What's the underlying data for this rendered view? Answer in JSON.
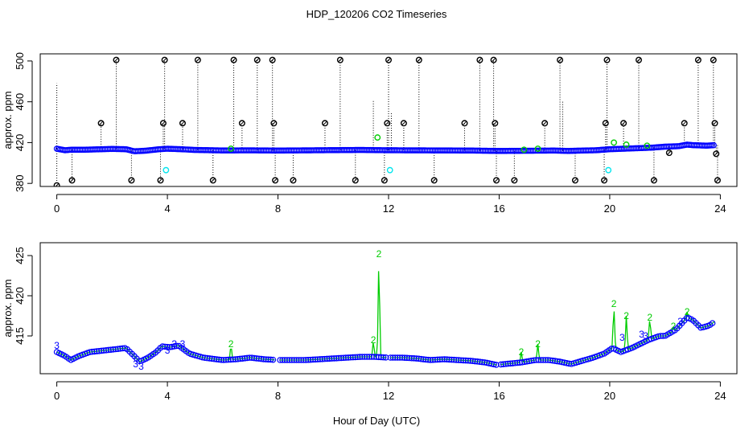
{
  "title": "HDP_120206  CO2 Timeseries",
  "xlabel": "Hour of Day (UTC)",
  "colors": {
    "timeseries_point": "#0000ff",
    "flag_point": "#000000",
    "flag_line": "#000000",
    "alt_point_cyan": "#00e5ee",
    "alt_point_green": "#00cc00"
  },
  "chart_data": [
    {
      "type": "scatter",
      "panel": "top",
      "ylabel": "approx. ppm",
      "xlim": [
        -0.6,
        24.6
      ],
      "ylim": [
        377,
        507
      ],
      "xticks": [
        0,
        4,
        8,
        12,
        16,
        20,
        24
      ],
      "yticks": [
        380,
        420,
        460,
        500
      ],
      "x": [
        0,
        24
      ],
      "baseline_profile": [
        [
          0.0,
          414.0
        ],
        [
          0.3,
          412.5
        ],
        [
          0.5,
          413.0
        ],
        [
          1.0,
          413.0
        ],
        [
          2.0,
          413.8
        ],
        [
          2.5,
          413.5
        ],
        [
          2.8,
          411.5
        ],
        [
          3.2,
          412.0
        ],
        [
          3.7,
          413.5
        ],
        [
          4.0,
          414.0
        ],
        [
          4.5,
          413.5
        ],
        [
          5.0,
          412.8
        ],
        [
          6.0,
          412.3
        ],
        [
          7.0,
          412.4
        ],
        [
          8.0,
          412.2
        ],
        [
          9.0,
          412.4
        ],
        [
          10.0,
          412.6
        ],
        [
          11.0,
          412.8
        ],
        [
          11.6,
          412.6
        ],
        [
          12.0,
          412.5
        ],
        [
          13.0,
          412.4
        ],
        [
          14.0,
          412.3
        ],
        [
          15.0,
          412.2
        ],
        [
          15.5,
          412.0
        ],
        [
          16.0,
          411.8
        ],
        [
          17.0,
          412.0
        ],
        [
          18.0,
          412.2
        ],
        [
          18.5,
          411.8
        ],
        [
          19.0,
          412.2
        ],
        [
          19.5,
          412.5
        ],
        [
          20.0,
          413.5
        ],
        [
          20.5,
          414.0
        ],
        [
          21.0,
          414.5
        ],
        [
          21.5,
          415.0
        ],
        [
          22.0,
          416.0
        ],
        [
          22.5,
          416.5
        ],
        [
          22.8,
          418.0
        ],
        [
          23.0,
          417.5
        ],
        [
          23.5,
          417.0
        ],
        [
          23.8,
          417.5
        ]
      ],
      "flagged_points": [
        {
          "x": 0.0,
          "y": 378
        },
        {
          "x": 0.55,
          "y": 383
        },
        {
          "x": 1.6,
          "y": 439
        },
        {
          "x": 2.15,
          "y": 501
        },
        {
          "x": 2.7,
          "y": 383
        },
        {
          "x": 3.75,
          "y": 383
        },
        {
          "x": 3.85,
          "y": 439
        },
        {
          "x": 3.9,
          "y": 501
        },
        {
          "x": 4.55,
          "y": 439
        },
        {
          "x": 5.1,
          "y": 501
        },
        {
          "x": 5.65,
          "y": 383
        },
        {
          "x": 6.4,
          "y": 501
        },
        {
          "x": 6.7,
          "y": 439
        },
        {
          "x": 7.25,
          "y": 501
        },
        {
          "x": 7.8,
          "y": 501
        },
        {
          "x": 7.85,
          "y": 439
        },
        {
          "x": 7.9,
          "y": 383
        },
        {
          "x": 8.55,
          "y": 383
        },
        {
          "x": 9.7,
          "y": 439
        },
        {
          "x": 10.25,
          "y": 501
        },
        {
          "x": 10.8,
          "y": 383
        },
        {
          "x": 11.85,
          "y": 383
        },
        {
          "x": 11.95,
          "y": 439
        },
        {
          "x": 12.0,
          "y": 501
        },
        {
          "x": 12.55,
          "y": 439
        },
        {
          "x": 13.1,
          "y": 501
        },
        {
          "x": 13.65,
          "y": 383
        },
        {
          "x": 14.75,
          "y": 439
        },
        {
          "x": 15.3,
          "y": 501
        },
        {
          "x": 15.8,
          "y": 501
        },
        {
          "x": 15.85,
          "y": 439
        },
        {
          "x": 15.9,
          "y": 383
        },
        {
          "x": 16.55,
          "y": 383
        },
        {
          "x": 17.65,
          "y": 439
        },
        {
          "x": 18.2,
          "y": 501
        },
        {
          "x": 18.75,
          "y": 383
        },
        {
          "x": 19.8,
          "y": 383
        },
        {
          "x": 19.85,
          "y": 439
        },
        {
          "x": 19.9,
          "y": 501
        },
        {
          "x": 20.5,
          "y": 439
        },
        {
          "x": 21.05,
          "y": 501
        },
        {
          "x": 21.6,
          "y": 383
        },
        {
          "x": 22.15,
          "y": 410
        },
        {
          "x": 22.7,
          "y": 439
        },
        {
          "x": 23.2,
          "y": 501
        },
        {
          "x": 23.75,
          "y": 501
        },
        {
          "x": 23.8,
          "y": 439
        },
        {
          "x": 23.85,
          "y": 409
        },
        {
          "x": 23.9,
          "y": 383
        }
      ],
      "cyan_points": [
        {
          "x": 3.95,
          "y": 393
        },
        {
          "x": 12.05,
          "y": 393
        },
        {
          "x": 19.95,
          "y": 393
        }
      ],
      "green_points": [
        {
          "x": 6.3,
          "y": 414
        },
        {
          "x": 11.6,
          "y": 425
        },
        {
          "x": 16.9,
          "y": 413
        },
        {
          "x": 17.4,
          "y": 414
        },
        {
          "x": 20.15,
          "y": 420
        },
        {
          "x": 20.6,
          "y": 418
        },
        {
          "x": 21.35,
          "y": 417
        }
      ]
    },
    {
      "type": "line",
      "panel": "bottom",
      "ylabel": "approx. ppm",
      "xlim": [
        -0.6,
        24.6
      ],
      "ylim": [
        410.3,
        426.6
      ],
      "xticks": [
        0,
        4,
        8,
        12,
        16,
        20,
        24
      ],
      "yticks": [
        415,
        420,
        425
      ],
      "baseline_profile": [
        [
          0.0,
          413.0
        ],
        [
          0.3,
          412.5
        ],
        [
          0.5,
          412.0
        ],
        [
          0.8,
          412.5
        ],
        [
          1.2,
          413.0
        ],
        [
          2.0,
          413.3
        ],
        [
          2.5,
          413.5
        ],
        [
          2.8,
          412.5
        ],
        [
          3.0,
          411.8
        ],
        [
          3.3,
          412.3
        ],
        [
          3.6,
          413.0
        ],
        [
          3.8,
          413.7
        ],
        [
          4.1,
          413.6
        ],
        [
          4.4,
          413.8
        ],
        [
          4.8,
          412.8
        ],
        [
          5.3,
          412.3
        ],
        [
          6.0,
          412.0
        ],
        [
          6.5,
          412.1
        ],
        [
          7.0,
          412.3
        ],
        [
          7.5,
          412.1
        ],
        [
          8.0,
          412.0
        ],
        [
          8.5,
          412.0
        ],
        [
          9.0,
          412.0
        ],
        [
          9.5,
          412.1
        ],
        [
          10.0,
          412.2
        ],
        [
          10.5,
          412.3
        ],
        [
          11.0,
          412.4
        ],
        [
          11.5,
          412.4
        ],
        [
          12.0,
          412.3
        ],
        [
          12.5,
          412.3
        ],
        [
          13.0,
          412.2
        ],
        [
          13.5,
          412.0
        ],
        [
          14.0,
          412.1
        ],
        [
          14.5,
          412.0
        ],
        [
          15.0,
          411.9
        ],
        [
          15.5,
          411.7
        ],
        [
          15.9,
          411.4
        ],
        [
          16.2,
          411.5
        ],
        [
          16.8,
          411.7
        ],
        [
          17.3,
          412.0
        ],
        [
          17.8,
          412.0
        ],
        [
          18.2,
          411.8
        ],
        [
          18.6,
          411.5
        ],
        [
          19.0,
          411.9
        ],
        [
          19.4,
          412.3
        ],
        [
          19.8,
          412.8
        ],
        [
          20.1,
          413.5
        ],
        [
          20.4,
          413.0
        ],
        [
          20.8,
          413.5
        ],
        [
          21.1,
          414.0
        ],
        [
          21.4,
          414.5
        ],
        [
          21.8,
          415.0
        ],
        [
          22.0,
          415.0
        ],
        [
          22.4,
          415.8
        ],
        [
          22.8,
          417.3
        ],
        [
          23.0,
          417.0
        ],
        [
          23.3,
          416.0
        ],
        [
          23.6,
          416.3
        ],
        [
          23.8,
          416.8
        ]
      ],
      "spikes": [
        {
          "x": 6.3,
          "y": 414.0,
          "label": "2"
        },
        {
          "x": 11.45,
          "y": 414.5,
          "label": "2"
        },
        {
          "x": 11.65,
          "y": 425.2,
          "label": "2"
        },
        {
          "x": 16.8,
          "y": 413.0,
          "label": "2"
        },
        {
          "x": 17.4,
          "y": 414.0,
          "label": "2"
        },
        {
          "x": 20.15,
          "y": 419.0,
          "label": "2"
        },
        {
          "x": 20.6,
          "y": 417.5,
          "label": "2"
        },
        {
          "x": 21.45,
          "y": 417.3,
          "label": "2"
        },
        {
          "x": 22.3,
          "y": 416.2,
          "label": "2"
        },
        {
          "x": 22.8,
          "y": 418.0,
          "label": "2"
        }
      ],
      "marker_labels": [
        {
          "x": 0.0,
          "y": 413.8,
          "label": "3"
        },
        {
          "x": 2.85,
          "y": 411.5,
          "label": "3"
        },
        {
          "x": 3.05,
          "y": 411.2,
          "label": "3"
        },
        {
          "x": 4.0,
          "y": 413.2,
          "label": "3"
        },
        {
          "x": 4.25,
          "y": 414.0,
          "label": "3"
        },
        {
          "x": 4.55,
          "y": 414.0,
          "label": "3"
        },
        {
          "x": 20.45,
          "y": 414.8,
          "label": "3"
        },
        {
          "x": 21.15,
          "y": 415.2,
          "label": "3"
        },
        {
          "x": 21.3,
          "y": 415.0,
          "label": "3"
        },
        {
          "x": 22.55,
          "y": 416.8,
          "label": "3"
        }
      ],
      "series": [
        {
          "name": "2",
          "color": "#00cc00"
        },
        {
          "name": "3",
          "color": "#0000ff"
        }
      ]
    }
  ]
}
